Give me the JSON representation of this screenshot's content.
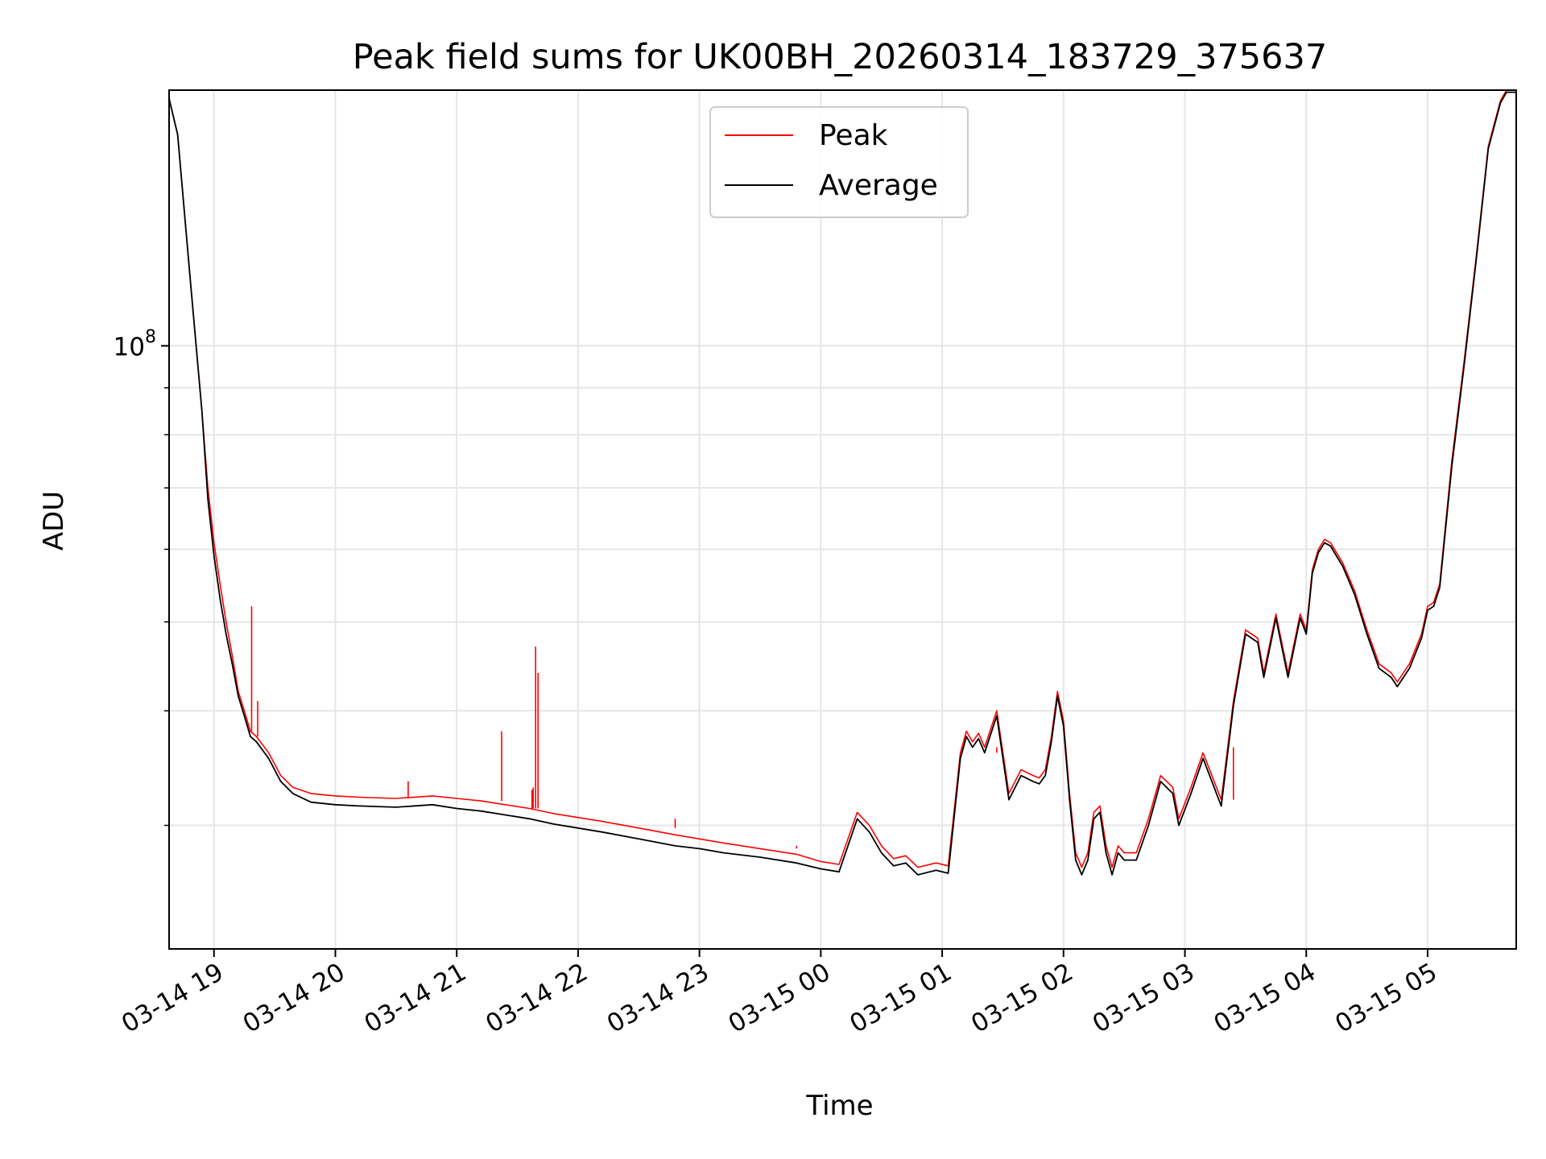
{
  "chart_data": {
    "type": "line",
    "title": "Peak field sums for UK00BH_20260314_183729_375637",
    "xlabel": "Time",
    "ylabel": "ADU",
    "yscale": "log",
    "ylim": [
      22000000,
      190000000
    ],
    "xlim_hours": [
      -0.37,
      10.73
    ],
    "x_unit": "hours after 2026-03-14 19:00",
    "grid": true,
    "legend_position": "upper center",
    "x_ticks": [
      {
        "hour": 0,
        "label": "03-14 19"
      },
      {
        "hour": 1,
        "label": "03-14 20"
      },
      {
        "hour": 2,
        "label": "03-14 21"
      },
      {
        "hour": 3,
        "label": "03-14 22"
      },
      {
        "hour": 4,
        "label": "03-14 23"
      },
      {
        "hour": 5,
        "label": "03-15 00"
      },
      {
        "hour": 6,
        "label": "03-15 01"
      },
      {
        "hour": 7,
        "label": "03-15 02"
      },
      {
        "hour": 8,
        "label": "03-15 03"
      },
      {
        "hour": 9,
        "label": "03-15 04"
      },
      {
        "hour": 10,
        "label": "03-15 05"
      }
    ],
    "y_major_ticks": [
      {
        "value": 100000000,
        "base": "10",
        "exp": "8"
      }
    ],
    "y_minor_ticks": [
      30000000,
      40000000,
      50000000,
      60000000,
      70000000,
      80000000,
      90000000,
      200000000
    ],
    "series": [
      {
        "name": "Peak",
        "color": "#ff0000",
        "x": [
          -0.37,
          -0.3,
          -0.2,
          -0.1,
          -0.05,
          0,
          0.05,
          0.1,
          0.15,
          0.2,
          0.25,
          0.3,
          0.35,
          0.45,
          0.55,
          0.65,
          0.8,
          1.0,
          1.2,
          1.5,
          1.8,
          2.0,
          2.2,
          2.4,
          2.6,
          2.8,
          3.0,
          3.2,
          3.5,
          3.8,
          4.0,
          4.2,
          4.5,
          4.8,
          5.0,
          5.15,
          5.3,
          5.4,
          5.5,
          5.6,
          5.7,
          5.8,
          5.95,
          6.05,
          6.15,
          6.2,
          6.25,
          6.3,
          6.35,
          6.45,
          6.55,
          6.65,
          6.75,
          6.8,
          6.85,
          6.9,
          6.95,
          7.0,
          7.05,
          7.1,
          7.15,
          7.2,
          7.25,
          7.3,
          7.35,
          7.4,
          7.45,
          7.5,
          7.55,
          7.6,
          7.7,
          7.8,
          7.9,
          7.95,
          8.05,
          8.15,
          8.3,
          8.4,
          8.5,
          8.6,
          8.65,
          8.75,
          8.85,
          8.95,
          9.0,
          9.05,
          9.1,
          9.15,
          9.2,
          9.3,
          9.4,
          9.5,
          9.6,
          9.7,
          9.75,
          9.85,
          9.95,
          10.0,
          10.05,
          10.1,
          10.2,
          10.3,
          10.4,
          10.5,
          10.6,
          10.65,
          10.7,
          10.73
        ],
        "values": [
          186000000,
          170000000,
          120000000,
          85000000,
          70000000,
          61000000,
          55000000,
          50000000,
          46000000,
          42000000,
          40000000,
          38000000,
          37500000,
          36000000,
          34000000,
          33000000,
          32500000,
          32300000,
          32200000,
          32100000,
          32300000,
          32100000,
          31900000,
          31600000,
          31300000,
          30900000,
          30600000,
          30300000,
          29800000,
          29300000,
          29000000,
          28700000,
          28300000,
          27900000,
          27400000,
          27200000,
          31000000,
          30000000,
          28500000,
          27600000,
          27800000,
          27000000,
          27300000,
          27100000,
          36000000,
          38000000,
          37000000,
          37800000,
          36500000,
          40000000,
          32500000,
          34500000,
          34000000,
          33800000,
          34500000,
          37500000,
          42000000,
          39000000,
          32500000,
          28000000,
          27000000,
          28000000,
          31000000,
          31500000,
          28500000,
          27000000,
          28500000,
          28000000,
          28000000,
          28000000,
          30500000,
          34000000,
          33000000,
          30500000,
          33000000,
          36000000,
          32000000,
          41000000,
          49000000,
          48000000,
          44000000,
          51000000,
          44000000,
          51000000,
          49000000,
          57000000,
          60000000,
          61500000,
          61000000,
          58000000,
          54000000,
          49000000,
          45000000,
          44000000,
          43000000,
          45000000,
          48500000,
          52000000,
          52500000,
          55000000,
          75000000,
          96000000,
          125000000,
          165000000,
          185000000,
          190000000,
          190000000,
          190000000
        ]
      },
      {
        "name": "Average",
        "color": "#000000",
        "x": [
          -0.37,
          -0.3,
          -0.2,
          -0.1,
          -0.05,
          0,
          0.05,
          0.1,
          0.15,
          0.2,
          0.25,
          0.3,
          0.35,
          0.45,
          0.55,
          0.65,
          0.8,
          1.0,
          1.2,
          1.5,
          1.8,
          2.0,
          2.2,
          2.4,
          2.6,
          2.8,
          3.0,
          3.2,
          3.5,
          3.8,
          4.0,
          4.2,
          4.5,
          4.8,
          5.0,
          5.15,
          5.3,
          5.4,
          5.5,
          5.6,
          5.7,
          5.8,
          5.95,
          6.05,
          6.15,
          6.2,
          6.25,
          6.3,
          6.35,
          6.45,
          6.55,
          6.65,
          6.75,
          6.8,
          6.85,
          6.9,
          6.95,
          7.0,
          7.05,
          7.1,
          7.15,
          7.2,
          7.25,
          7.3,
          7.35,
          7.4,
          7.45,
          7.5,
          7.55,
          7.6,
          7.7,
          7.8,
          7.9,
          7.95,
          8.05,
          8.15,
          8.3,
          8.4,
          8.5,
          8.6,
          8.65,
          8.75,
          8.85,
          8.95,
          9.0,
          9.05,
          9.1,
          9.15,
          9.2,
          9.3,
          9.4,
          9.5,
          9.6,
          9.7,
          9.75,
          9.85,
          9.95,
          10.0,
          10.05,
          10.1,
          10.2,
          10.3,
          10.4,
          10.5,
          10.6,
          10.65,
          10.7,
          10.73
        ],
        "values": [
          186000000,
          170000000,
          120000000,
          85000000,
          68000000,
          59000000,
          53000000,
          48500000,
          45000000,
          41500000,
          39500000,
          37500000,
          37000000,
          35500000,
          33500000,
          32500000,
          31800000,
          31600000,
          31500000,
          31400000,
          31600000,
          31300000,
          31100000,
          30800000,
          30500000,
          30100000,
          29800000,
          29500000,
          29000000,
          28500000,
          28300000,
          28000000,
          27700000,
          27300000,
          26900000,
          26700000,
          30500000,
          29500000,
          28000000,
          27100000,
          27300000,
          26500000,
          26800000,
          26600000,
          35500000,
          37500000,
          36500000,
          37300000,
          36000000,
          39500000,
          32000000,
          34000000,
          33500000,
          33300000,
          34000000,
          37000000,
          41500000,
          38500000,
          32000000,
          27500000,
          26500000,
          27500000,
          30500000,
          31000000,
          28000000,
          26500000,
          28000000,
          27500000,
          27500000,
          27500000,
          30000000,
          33500000,
          32500000,
          30000000,
          32500000,
          35500000,
          31500000,
          40500000,
          48500000,
          47500000,
          43500000,
          50500000,
          43500000,
          50500000,
          48500000,
          56500000,
          59500000,
          61000000,
          60500000,
          57500000,
          53500000,
          48500000,
          44500000,
          43500000,
          42500000,
          44500000,
          48000000,
          51500000,
          52000000,
          54500000,
          74000000,
          95000000,
          124000000,
          164000000,
          184000000,
          189000000,
          189000000,
          189000000
        ]
      }
    ],
    "spikes": [
      {
        "hour": 0.31,
        "value": 52000000
      },
      {
        "hour": 0.36,
        "value": 41000000
      },
      {
        "hour": 1.6,
        "value": 33500000
      },
      {
        "hour": 2.37,
        "value": 38000000
      },
      {
        "hour": 2.62,
        "value": 32800000
      },
      {
        "hour": 2.63,
        "value": 33000000
      },
      {
        "hour": 2.65,
        "value": 47000000
      },
      {
        "hour": 2.67,
        "value": 44000000
      },
      {
        "hour": 3.8,
        "value": 30500000
      },
      {
        "hour": 4.8,
        "value": 28500000
      },
      {
        "hour": 6.45,
        "value": 36000000
      },
      {
        "hour": 8.4,
        "value": 36500000
      }
    ]
  }
}
